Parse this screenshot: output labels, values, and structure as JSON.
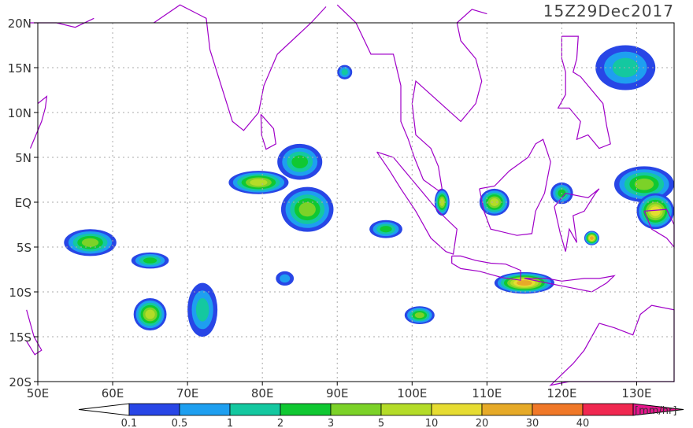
{
  "map": {
    "title": "15Z29Dec2017",
    "lon_ticks": [
      "50E",
      "60E",
      "70E",
      "80E",
      "90E",
      "100E",
      "110E",
      "120E",
      "130E"
    ],
    "lon_values": [
      50,
      60,
      70,
      80,
      90,
      100,
      110,
      120,
      130
    ],
    "lat_ticks": [
      "20N",
      "15N",
      "10N",
      "5N",
      "EQ",
      "5S",
      "10S",
      "15S",
      "20S"
    ],
    "lat_values": [
      20,
      15,
      10,
      5,
      0,
      -5,
      -10,
      -15,
      -20
    ],
    "lon_range": [
      50,
      135
    ],
    "lat_range": [
      -20,
      20
    ],
    "grid": true,
    "coastline_color": "#a000c8"
  },
  "colorbar": {
    "labels": [
      "0.1",
      "0.5",
      "1",
      "2",
      "3",
      "5",
      "10",
      "20",
      "30",
      "40"
    ],
    "colors": [
      "#2846e6",
      "#1e9ff0",
      "#14c8a0",
      "#10c832",
      "#7cd228",
      "#b4dc28",
      "#e6dc32",
      "#e6aa28",
      "#f07828",
      "#f02850"
    ],
    "over_color": "#e6148c",
    "units": "[mm/hr]"
  },
  "rain_cells": [
    {
      "lon": 57,
      "lat": -4.5,
      "rx": 3.5,
      "ry": 1.5,
      "level": 4
    },
    {
      "lon": 65,
      "lat": -6.5,
      "rx": 2.5,
      "ry": 0.9,
      "level": 3
    },
    {
      "lon": 65,
      "lat": -12.5,
      "rx": 2.2,
      "ry": 1.8,
      "level": 5
    },
    {
      "lon": 72,
      "lat": -12,
      "rx": 2,
      "ry": 3,
      "level": 2
    },
    {
      "lon": 79.5,
      "lat": 2.2,
      "rx": 4,
      "ry": 1.3,
      "level": 5
    },
    {
      "lon": 85,
      "lat": 4.5,
      "rx": 3,
      "ry": 2,
      "level": 3
    },
    {
      "lon": 86,
      "lat": -0.8,
      "rx": 3.5,
      "ry": 2.5,
      "level": 4
    },
    {
      "lon": 96.5,
      "lat": -3,
      "rx": 2.2,
      "ry": 1,
      "level": 3
    },
    {
      "lon": 91,
      "lat": 14.5,
      "rx": 1,
      "ry": 0.8,
      "level": 2
    },
    {
      "lon": 83,
      "lat": -8.5,
      "rx": 1.2,
      "ry": 0.8,
      "level": 1
    },
    {
      "lon": 104,
      "lat": 0,
      "rx": 1,
      "ry": 1.5,
      "level": 5
    },
    {
      "lon": 111,
      "lat": 0,
      "rx": 2,
      "ry": 1.5,
      "level": 5
    },
    {
      "lon": 120,
      "lat": 1,
      "rx": 1.5,
      "ry": 1.2,
      "level": 3
    },
    {
      "lon": 131,
      "lat": 2,
      "rx": 4,
      "ry": 2,
      "level": 4
    },
    {
      "lon": 128.5,
      "lat": 15,
      "rx": 4,
      "ry": 2.5,
      "level": 2
    },
    {
      "lon": 115,
      "lat": -9,
      "rx": 4,
      "ry": 1.2,
      "level": 7
    },
    {
      "lon": 101,
      "lat": -12.6,
      "rx": 2,
      "ry": 1,
      "level": 4
    },
    {
      "lon": 132.5,
      "lat": -1,
      "rx": 2.5,
      "ry": 2,
      "level": 6
    },
    {
      "lon": 124,
      "lat": -4,
      "rx": 1,
      "ry": 0.8,
      "level": 7
    }
  ]
}
